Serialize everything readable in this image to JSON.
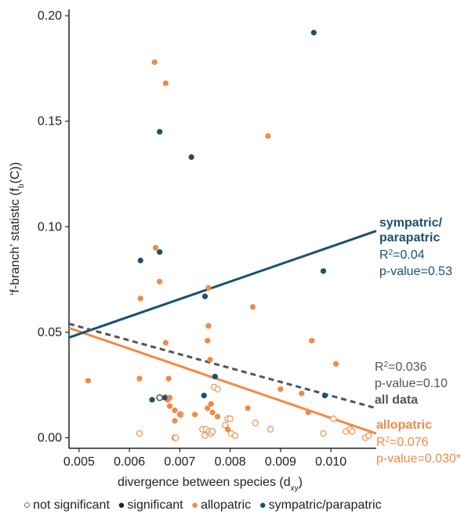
{
  "chart_data": {
    "type": "scatter",
    "xlabel": "divergence between species (d",
    "xlabel_sub": "xy",
    "xlabel_end": ")",
    "ylabel": "‘f-branch’ statistic (f",
    "ylabel_sub": "b",
    "ylabel_end": "(C))",
    "xlim": [
      0.0048,
      0.0109
    ],
    "ylim": [
      -0.005,
      0.203
    ],
    "xticks": [
      0.005,
      0.006,
      0.007,
      0.008,
      0.009,
      0.01
    ],
    "xtick_labels": [
      "0.005",
      "0.006",
      "0.007",
      "0.008",
      "0.009",
      "0.010"
    ],
    "yticks": [
      0.0,
      0.05,
      0.1,
      0.15,
      0.2
    ],
    "ytick_labels": [
      "0.00",
      "0.05",
      "0.10",
      "0.15",
      "0.20"
    ],
    "grid": false,
    "colors": {
      "allopatric": "#f08a45",
      "sympatric": "#1a5070",
      "all": "#555555",
      "black": "#222222"
    },
    "series": [
      {
        "name": "allopatric",
        "significant": [
          [
            0.0065,
            0.178
          ],
          [
            0.00672,
            0.168
          ],
          [
            0.00875,
            0.143
          ],
          [
            0.00652,
            0.09
          ],
          [
            0.0066,
            0.074
          ],
          [
            0.00757,
            0.071
          ],
          [
            0.00622,
            0.066
          ],
          [
            0.00845,
            0.062
          ],
          [
            0.00757,
            0.053
          ],
          [
            0.00755,
            0.046
          ],
          [
            0.00672,
            0.045
          ],
          [
            0.00962,
            0.046
          ],
          [
            0.0076,
            0.037
          ],
          [
            0.0101,
            0.035
          ],
          [
            0.00518,
            0.027
          ],
          [
            0.0062,
            0.028
          ],
          [
            0.00678,
            0.028
          ],
          [
            0.00762,
            0.016
          ],
          [
            0.009,
            0.023
          ],
          [
            0.00942,
            0.021
          ],
          [
            0.00676,
            0.018
          ],
          [
            0.0068,
            0.015
          ],
          [
            0.0069,
            0.013
          ],
          [
            0.007,
            0.011
          ],
          [
            0.0073,
            0.011
          ],
          [
            0.00755,
            0.014
          ],
          [
            0.00765,
            0.012
          ],
          [
            0.00775,
            0.01
          ],
          [
            0.0069,
            0.008
          ],
          [
            0.00835,
            0.014
          ],
          [
            0.00955,
            0.012
          ],
          [
            0.0068,
            0.019
          ],
          [
            0.00795,
            0.004
          ]
        ],
        "not_significant": [
          [
            0.0062,
            0.002
          ],
          [
            0.00672,
            0.019
          ],
          [
            0.0069,
            0.0
          ],
          [
            0.00702,
            0.011
          ],
          [
            0.00745,
            0.004
          ],
          [
            0.00752,
            0.004
          ],
          [
            0.0075,
            0.001
          ],
          [
            0.00758,
            0.003
          ],
          [
            0.00768,
            0.024
          ],
          [
            0.00775,
            0.023
          ],
          [
            0.0079,
            0.006
          ],
          [
            0.00795,
            0.009
          ],
          [
            0.008,
            0.009
          ],
          [
            0.00802,
            0.002
          ],
          [
            0.0081,
            0.001
          ],
          [
            0.0085,
            0.007
          ],
          [
            0.0088,
            0.004
          ],
          [
            0.00985,
            0.002
          ],
          [
            0.01005,
            0.009
          ],
          [
            0.0103,
            0.003
          ],
          [
            0.01038,
            0.004
          ],
          [
            0.01042,
            0.003
          ],
          [
            0.01068,
            0.0
          ],
          [
            0.01075,
            0.001
          ],
          [
            0.00692,
            0.0
          ],
          [
            0.00762,
            0.002
          ],
          [
            0.00765,
            0.003
          ]
        ],
        "fit": {
          "x": [
            0.0048,
            0.0109
          ],
          "y": [
            0.052,
            0.002
          ]
        },
        "r2_label": "R",
        "r2_value": "=0.076",
        "pvalue_label": "p-value=0.030*",
        "title_label": "allopatric"
      },
      {
        "name": "sympatric/parapatric",
        "significant": [
          [
            0.00966,
            0.192
          ],
          [
            0.0066,
            0.145
          ],
          [
            0.00723,
            0.133
          ],
          [
            0.0066,
            0.088
          ],
          [
            0.00622,
            0.084
          ],
          [
            0.00985,
            0.079
          ],
          [
            0.0075,
            0.067
          ],
          [
            0.0077,
            0.029
          ],
          [
            0.00645,
            0.018
          ],
          [
            0.0067,
            0.019
          ],
          [
            0.00748,
            0.02
          ],
          [
            0.00988,
            0.02
          ]
        ],
        "not_significant": [
          [
            0.0066,
            0.019
          ]
        ],
        "fit": {
          "x": [
            0.0048,
            0.0109
          ],
          "y": [
            0.0475,
            0.098
          ]
        },
        "title_label_1": "sympatric/",
        "title_label_2": "parapatric",
        "r2_label": "R",
        "r2_value": "=0.04",
        "pvalue_label": "p-value=0.53"
      },
      {
        "name": "all data",
        "fit": {
          "x": [
            0.0048,
            0.0109
          ],
          "y": [
            0.054,
            0.014
          ]
        },
        "r2_label": "R",
        "r2_value": "=0.036",
        "pvalue_label": "p-value=0.10",
        "title_label": "all data"
      }
    ],
    "superscript": "2",
    "legend": [
      {
        "symbol": "○",
        "label": "not significant",
        "color": "#222222"
      },
      {
        "symbol": "●",
        "label": "significant",
        "color": "#222222"
      },
      {
        "symbol": "●",
        "label": "allopatric",
        "color": "#f08a45"
      },
      {
        "symbol": "●",
        "label": "sympatric/parapatric",
        "color": "#1a5070"
      }
    ]
  }
}
